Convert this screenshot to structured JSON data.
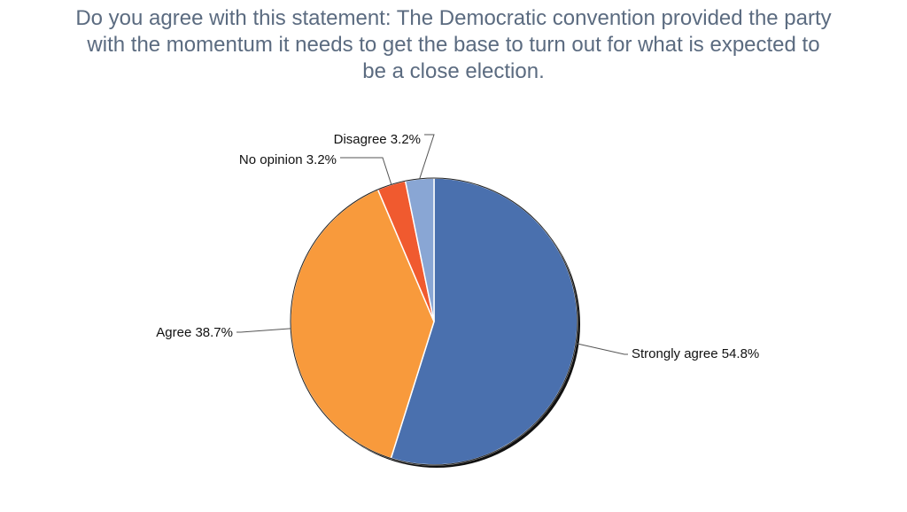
{
  "chart_data": {
    "type": "pie",
    "title_lines": [
      "Do you agree with this statement: The Democratic convention provided the party",
      "with the momentum it needs to get the base to turn out for what is expected to",
      "be a close election."
    ],
    "slices": [
      {
        "label": "Strongly agree",
        "value": 54.8,
        "value_label": "54.8%",
        "color": "#4a70ae"
      },
      {
        "label": "Agree",
        "value": 38.7,
        "value_label": "38.7%",
        "color": "#f89a3c"
      },
      {
        "label": "No opinion",
        "value": 3.2,
        "value_label": "3.2%",
        "color": "#f05a2f"
      },
      {
        "label": "Disagree",
        "value": 3.2,
        "value_label": "3.2%",
        "color": "#89a6d4"
      }
    ]
  }
}
